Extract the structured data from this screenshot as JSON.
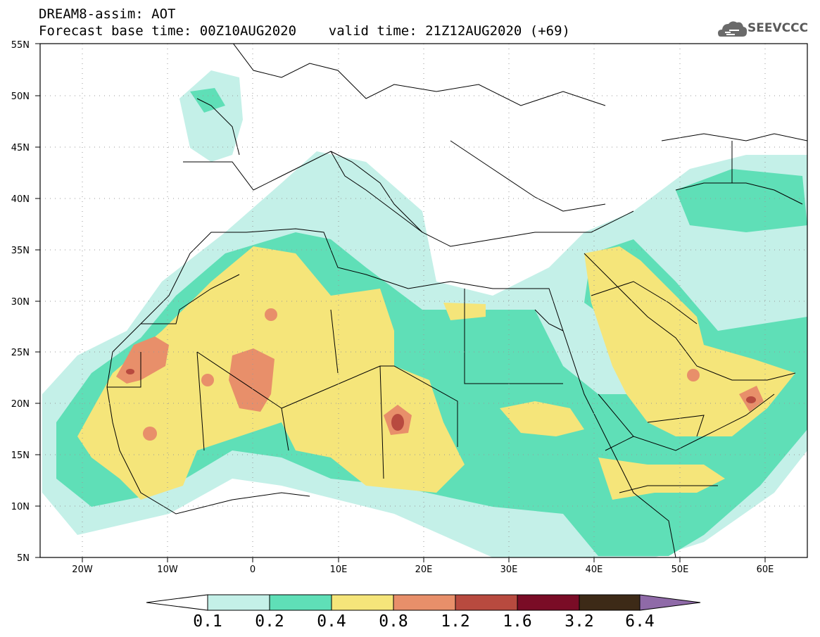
{
  "header": {
    "line1": "DREAM8-assim: AOT",
    "line2": "Forecast base time: 00Z10AUG2020    valid time: 21Z12AUG2020 (+69)"
  },
  "logo": {
    "text": "SEEVCCC",
    "icon": "cloud-icon"
  },
  "axes": {
    "lat_labels": [
      "55N",
      "50N",
      "45N",
      "40N",
      "35N",
      "30N",
      "25N",
      "20N",
      "15N",
      "10N",
      "5N"
    ],
    "lon_labels": [
      "20W",
      "10W",
      "0",
      "10E",
      "20E",
      "30E",
      "40E",
      "50E",
      "60E"
    ]
  },
  "colorbar": {
    "levels": [
      "0.1",
      "0.2",
      "0.4",
      "0.8",
      "1.2",
      "1.6",
      "3.2",
      "6.4"
    ],
    "colors": [
      "#c4f0e8",
      "#5fdfb7",
      "#f5e57a",
      "#e88f6a",
      "#b84a3f",
      "#7a0c26",
      "#3d2a17",
      "#8f6aa8"
    ]
  }
}
